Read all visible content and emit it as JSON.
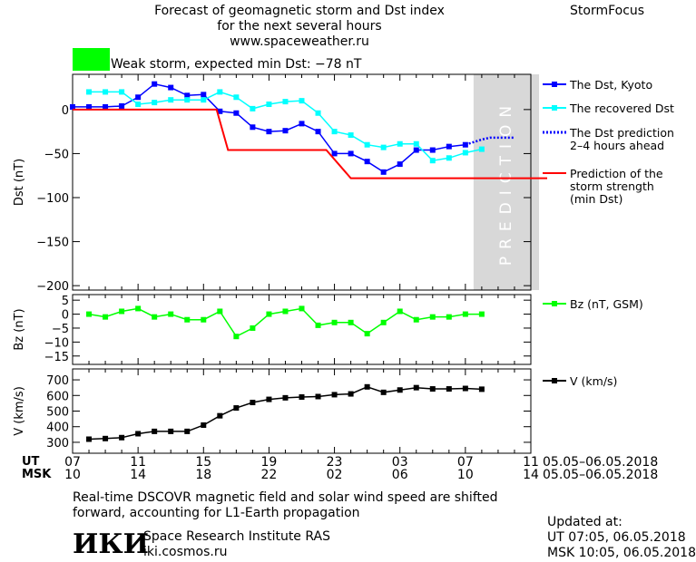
{
  "header": {
    "title_line1": "Forecast of geomagnetic storm and Dst index",
    "title_line2": "for the next several hours",
    "site": "www.spaceweather.ru",
    "brand": "StormFocus",
    "storm_label": "Weak storm, expected min Dst: −78 nT",
    "storm_color": "#00ff00"
  },
  "footer": {
    "ut_label": "UT",
    "msk_label": "MSK",
    "ut_ticks": [
      "07",
      "11",
      "15",
      "19",
      "23",
      "03",
      "07",
      "11"
    ],
    "msk_ticks": [
      "10",
      "14",
      "18",
      "22",
      "02",
      "06",
      "10",
      "14"
    ],
    "ut_dates": "05.05–06.05.2018",
    "msk_dates": "05.05–06.05.2018",
    "note_line1": "Real-time DSCOVR magnetic field and solar wind speed are shifted",
    "note_line2": "forward, accounting for L1-Earth propagation",
    "logo": "ИКИ",
    "institute": "Space Research Institute RAS",
    "institute_site": "iki.cosmos.ru",
    "updated_label": "Updated at:",
    "updated_ut": "UT   07:05, 06.05.2018",
    "updated_msk": "MSK 10:05, 06.05.2018"
  },
  "chart_data": [
    {
      "type": "line",
      "ylabel": "Dst (nT)",
      "ylim": [
        -205,
        40
      ],
      "yticks": [
        0,
        -50,
        -100,
        -150,
        -200
      ],
      "xlim": [
        0,
        28
      ],
      "prediction_band": [
        24.5,
        28.5
      ],
      "prediction_text": "PREDICTION",
      "series": [
        {
          "name": "The Dst, Kyoto",
          "color": "#0000ff",
          "marker": "square",
          "x": [
            0,
            1,
            2,
            3,
            4,
            5,
            6,
            7,
            8,
            9,
            10,
            11,
            12,
            13,
            14,
            15,
            16,
            17,
            18,
            19,
            20,
            21,
            22,
            23,
            24
          ],
          "values": [
            3,
            3,
            3,
            4,
            14,
            29,
            25,
            16,
            17,
            -2,
            -4,
            -20,
            -25,
            -24,
            -16,
            -25,
            -50,
            -50,
            -59,
            -71,
            -62,
            -46,
            -46,
            -42,
            -40
          ]
        },
        {
          "name": "The recovered Dst",
          "color": "#00ffff",
          "marker": "square",
          "x": [
            1,
            2,
            3,
            4,
            5,
            6,
            7,
            8,
            9,
            10,
            11,
            12,
            13,
            14,
            15,
            16,
            17,
            18,
            19,
            20,
            21,
            22,
            23,
            24,
            25
          ],
          "values": [
            20,
            20,
            20,
            6,
            8,
            11,
            11,
            11,
            20,
            14,
            1,
            6,
            9,
            10,
            -4,
            -25,
            -29,
            -40,
            -43,
            -39,
            -39,
            -58,
            -55,
            -49,
            -45
          ]
        },
        {
          "name": "The Dst prediction\n2–4 hours ahead",
          "color": "#0000ff",
          "dotted": true,
          "x": [
            24,
            24.5,
            25,
            25.5,
            26,
            27
          ],
          "values": [
            -40,
            -37,
            -34,
            -32,
            -32,
            -32
          ]
        },
        {
          "name": "Prediction of the\nstorm strength\n(min Dst)",
          "color": "#ff0000",
          "step": true,
          "x": [
            0,
            8.8,
            9.5,
            15.5,
            17,
            29
          ],
          "values": [
            0,
            0,
            -46,
            -46,
            -78,
            -78
          ]
        }
      ]
    },
    {
      "type": "line",
      "ylabel": "Bz (nT)",
      "ylim": [
        -18,
        7
      ],
      "yticks": [
        5,
        0,
        -5,
        -10,
        -15
      ],
      "series": [
        {
          "name": "Bz (nT, GSM)",
          "color": "#00ff00",
          "marker": "square",
          "x": [
            1,
            2,
            3,
            4,
            5,
            6,
            7,
            8,
            9,
            10,
            11,
            12,
            13,
            14,
            15,
            16,
            17,
            18,
            19,
            20,
            21,
            22,
            23,
            24,
            25
          ],
          "values": [
            0,
            -1,
            1,
            2,
            -1,
            0,
            -2,
            -2,
            1,
            -8,
            -5,
            0,
            1,
            2,
            -4,
            -3,
            -3,
            -7,
            -3,
            1,
            -2,
            -1,
            -1,
            0,
            0
          ]
        }
      ]
    },
    {
      "type": "line",
      "ylabel": "V (km/s)",
      "ylim": [
        230,
        770
      ],
      "yticks": [
        700,
        600,
        500,
        400,
        300
      ],
      "series": [
        {
          "name": "V (km/s)",
          "color": "#000000",
          "marker": "square",
          "x": [
            1,
            2,
            3,
            4,
            5,
            6,
            7,
            8,
            9,
            10,
            11,
            12,
            13,
            14,
            15,
            16,
            17,
            18,
            19,
            20,
            21,
            22,
            23,
            24,
            25
          ],
          "values": [
            320,
            324,
            330,
            355,
            370,
            370,
            370,
            410,
            470,
            520,
            555,
            575,
            585,
            590,
            593,
            605,
            610,
            655,
            620,
            635,
            650,
            642,
            642,
            645,
            640
          ]
        }
      ]
    }
  ]
}
